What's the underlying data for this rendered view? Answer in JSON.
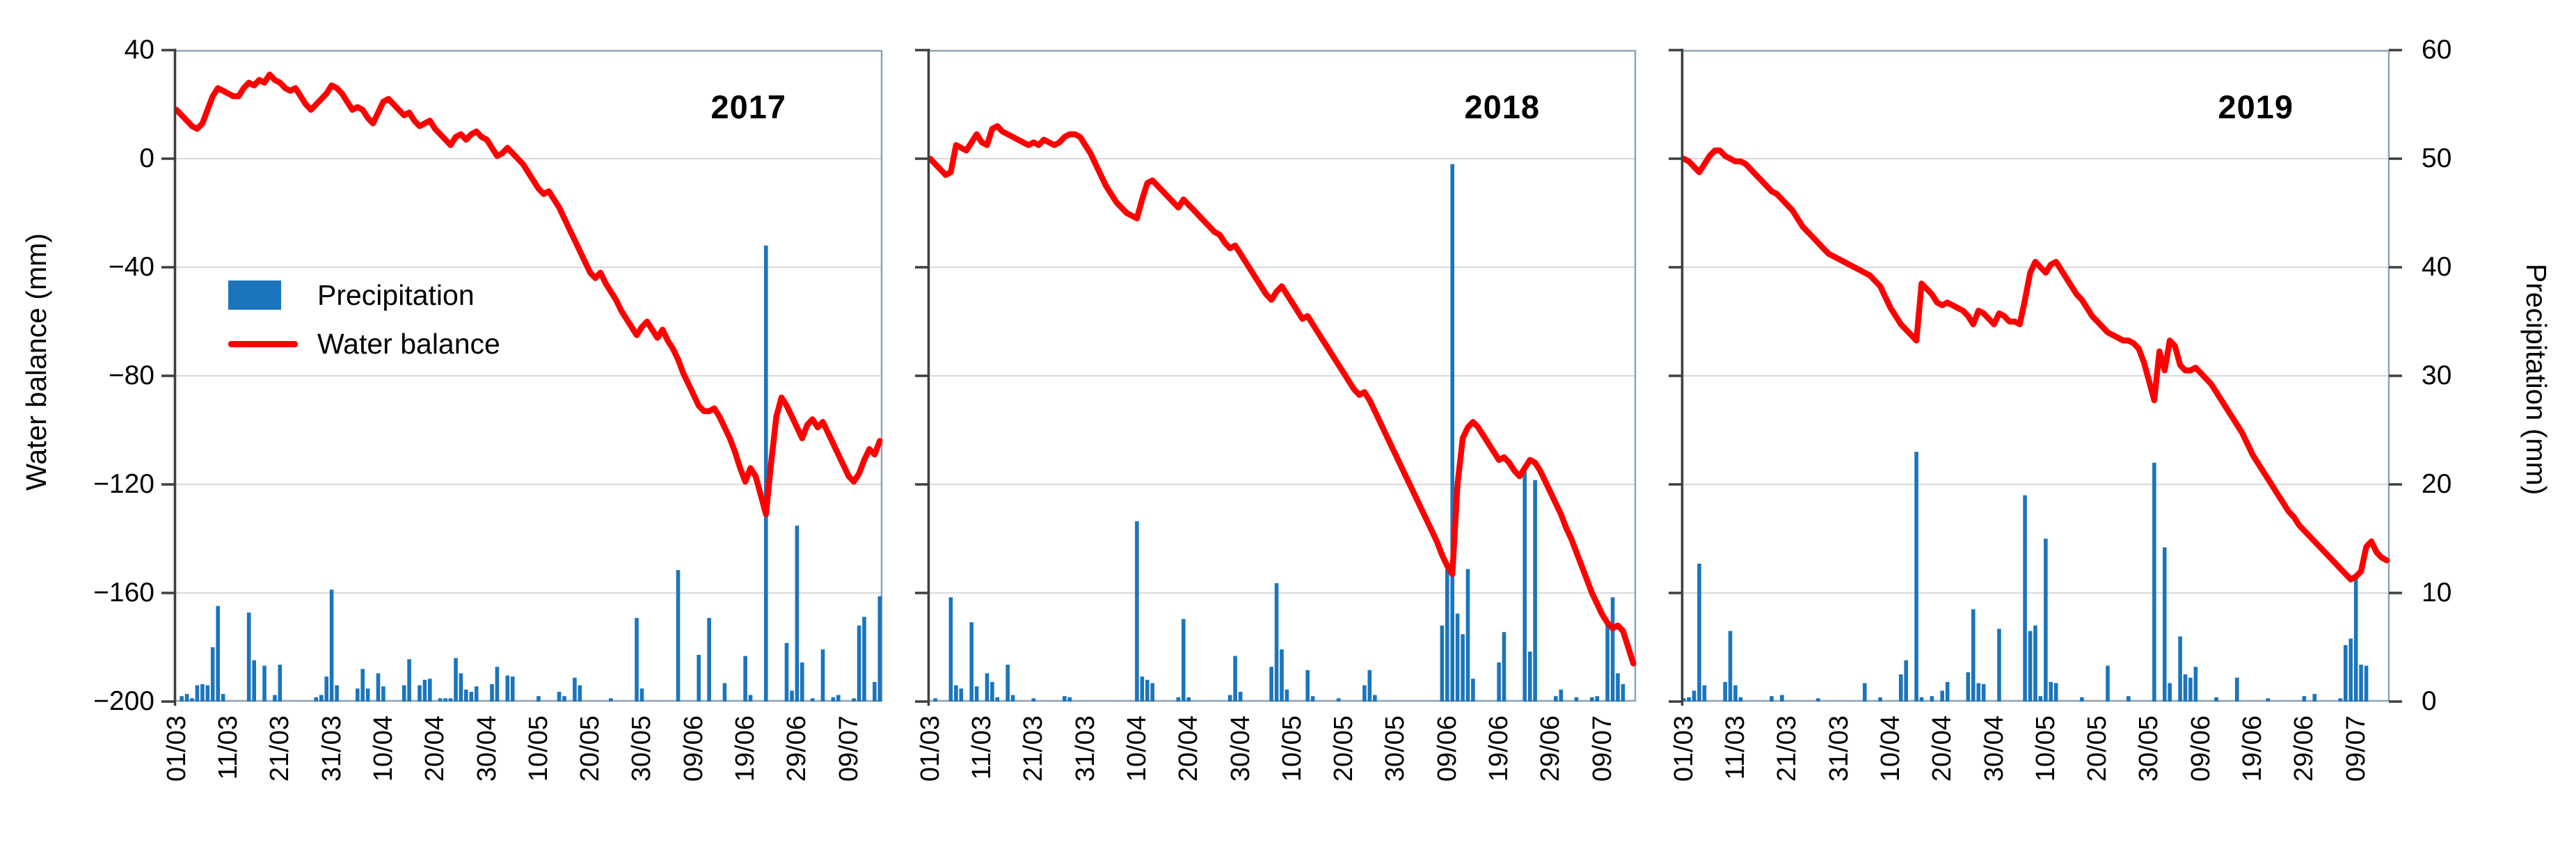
{
  "figure": {
    "description": "Daily water balance (red line, left axis) and precipitation (blue bars, right axis) from 01/03 to mid-July for 2017, 2018 and 2019"
  },
  "colors": {
    "bar": "#1B75BC",
    "line": "#FE0000",
    "grid": "#D9D9D9",
    "baseline": "#C6C6C6",
    "panel_border": "#8EA3B8",
    "spine": "#3F3F3F",
    "text": "#000000",
    "background": "#FFFFFF"
  },
  "axes": {
    "left": {
      "title": "Water balance (mm)",
      "ticks": [
        40,
        0,
        -40,
        -80,
        -120,
        -160,
        -200
      ],
      "tick_labels": [
        "40",
        "0",
        "−40",
        "−80",
        "−120",
        "−160",
        "−200"
      ],
      "range": [
        -200,
        40
      ]
    },
    "right": {
      "title": "Precipitation (mm)",
      "ticks": [
        60,
        50,
        40,
        30,
        20,
        10,
        0
      ],
      "tick_labels": [
        "60",
        "50",
        "40",
        "30",
        "20",
        "10",
        "0"
      ],
      "range": [
        0,
        60
      ]
    },
    "x": {
      "tick_labels": [
        "01/03",
        "11/03",
        "21/03",
        "31/03",
        "10/04",
        "20/04",
        "30/04",
        "10/05",
        "20/05",
        "30/05",
        "09/06",
        "19/06",
        "29/06",
        "09/07"
      ],
      "tick_days": [
        0,
        10,
        20,
        30,
        40,
        50,
        60,
        70,
        80,
        90,
        100,
        110,
        120,
        130
      ],
      "total_days": 137,
      "grid": false
    }
  },
  "legend": {
    "items": [
      {
        "label": "Precipitation",
        "type": "bar",
        "color": "#1B75BC"
      },
      {
        "label": "Water balance",
        "type": "line",
        "color": "#FE0000"
      }
    ]
  },
  "chart_data": [
    {
      "type": "bar+line",
      "title": "2017",
      "x_unit": "day index, 0 = 01/03, daily data to mid-July",
      "precipitation_mm_by_day": [
        [
          1,
          0.5
        ],
        [
          2,
          0.7
        ],
        [
          3,
          0.3
        ],
        [
          4,
          1.5
        ],
        [
          5,
          1.6
        ],
        [
          6,
          1.5
        ],
        [
          7,
          5.0
        ],
        [
          8,
          8.8
        ],
        [
          9,
          0.7
        ],
        [
          14,
          8.2
        ],
        [
          15,
          3.8
        ],
        [
          17,
          3.3
        ],
        [
          19,
          0.6
        ],
        [
          20,
          3.4
        ],
        [
          27,
          0.4
        ],
        [
          28,
          0.6
        ],
        [
          29,
          2.3
        ],
        [
          30,
          10.3
        ],
        [
          31,
          1.5
        ],
        [
          35,
          1.2
        ],
        [
          36,
          3.0
        ],
        [
          37,
          1.2
        ],
        [
          39,
          2.6
        ],
        [
          40,
          1.4
        ],
        [
          44,
          1.5
        ],
        [
          45,
          3.9
        ],
        [
          47,
          1.5
        ],
        [
          48,
          2.0
        ],
        [
          49,
          2.1
        ],
        [
          51,
          0.3
        ],
        [
          52,
          0.3
        ],
        [
          53,
          0.3
        ],
        [
          54,
          4.0
        ],
        [
          55,
          2.6
        ],
        [
          56,
          1.1
        ],
        [
          57,
          0.9
        ],
        [
          58,
          1.4
        ],
        [
          61,
          1.6
        ],
        [
          62,
          3.2
        ],
        [
          64,
          2.4
        ],
        [
          65,
          2.3
        ],
        [
          70,
          0.5
        ],
        [
          74,
          0.9
        ],
        [
          75,
          0.5
        ],
        [
          77,
          2.2
        ],
        [
          78,
          1.5
        ],
        [
          84,
          0.3
        ],
        [
          89,
          7.7
        ],
        [
          90,
          1.2
        ],
        [
          97,
          12.1
        ],
        [
          101,
          4.3
        ],
        [
          103,
          7.7
        ],
        [
          106,
          1.7
        ],
        [
          110,
          4.2
        ],
        [
          111,
          0.6
        ],
        [
          114,
          42.0
        ],
        [
          118,
          5.4
        ],
        [
          119,
          1.0
        ],
        [
          120,
          16.2
        ],
        [
          121,
          3.6
        ],
        [
          123,
          0.3
        ],
        [
          125,
          4.8
        ],
        [
          127,
          0.4
        ],
        [
          128,
          0.6
        ],
        [
          131,
          0.3
        ],
        [
          132,
          7.0
        ],
        [
          133,
          7.8
        ],
        [
          135,
          1.8
        ],
        [
          136,
          9.7
        ]
      ],
      "water_balance_mm_by_day": [
        18,
        16,
        14,
        12,
        11,
        13,
        18,
        23,
        26,
        25,
        24,
        23,
        23,
        26,
        28,
        27,
        29,
        28,
        31,
        29,
        28,
        26,
        25,
        26,
        23,
        20,
        18,
        20,
        22,
        24,
        27,
        26,
        24,
        21,
        18,
        19,
        18,
        15,
        13,
        17,
        21,
        22,
        20,
        18,
        16,
        17,
        14,
        12,
        13,
        14,
        11,
        9,
        7,
        5,
        8,
        9,
        7,
        9,
        10,
        8,
        7,
        4,
        1,
        2,
        4,
        2,
        0,
        -2,
        -5,
        -8,
        -11,
        -13,
        -12,
        -15,
        -18,
        -22,
        -26,
        -30,
        -34,
        -38,
        -42,
        -44,
        -42,
        -46,
        -49,
        -52,
        -56,
        -59,
        -62,
        -65,
        -62,
        -60,
        -63,
        -66,
        -63,
        -67,
        -70,
        -74,
        -79,
        -83,
        -87,
        -91,
        -93,
        -93,
        -92,
        -95,
        -99,
        -103,
        -108,
        -114,
        -119,
        -114,
        -117,
        -124,
        -131,
        -112,
        -95,
        -88,
        -91,
        -95,
        -99,
        -103,
        -98,
        -96,
        -99,
        -97,
        -101,
        -105,
        -109,
        -113,
        -117,
        -119,
        -116,
        -111,
        -107,
        -109,
        -104
      ]
    },
    {
      "type": "bar+line",
      "title": "2018",
      "x_unit": "day index, 0 = 01/03, daily data to mid-July",
      "precipitation_mm_by_day": [
        [
          1,
          0.3
        ],
        [
          4,
          9.6
        ],
        [
          5,
          1.5
        ],
        [
          6,
          1.2
        ],
        [
          8,
          7.3
        ],
        [
          9,
          1.4
        ],
        [
          11,
          2.6
        ],
        [
          12,
          1.8
        ],
        [
          13,
          0.4
        ],
        [
          15,
          3.4
        ],
        [
          16,
          0.6
        ],
        [
          20,
          0.3
        ],
        [
          26,
          0.5
        ],
        [
          27,
          0.4
        ],
        [
          40,
          16.6
        ],
        [
          41,
          2.3
        ],
        [
          42,
          2.0
        ],
        [
          43,
          1.7
        ],
        [
          48,
          0.4
        ],
        [
          49,
          7.6
        ],
        [
          50,
          0.4
        ],
        [
          58,
          0.6
        ],
        [
          59,
          4.2
        ],
        [
          60,
          0.9
        ],
        [
          66,
          3.2
        ],
        [
          67,
          10.9
        ],
        [
          68,
          4.8
        ],
        [
          69,
          1.1
        ],
        [
          73,
          2.9
        ],
        [
          74,
          0.5
        ],
        [
          79,
          0.3
        ],
        [
          84,
          1.5
        ],
        [
          85,
          2.9
        ],
        [
          86,
          0.6
        ],
        [
          99,
          7.0
        ],
        [
          100,
          12.2
        ],
        [
          101,
          49.5
        ],
        [
          102,
          8.1
        ],
        [
          103,
          6.2
        ],
        [
          104,
          12.2
        ],
        [
          105,
          2.1
        ],
        [
          110,
          3.6
        ],
        [
          111,
          6.4
        ],
        [
          115,
          21.2
        ],
        [
          116,
          4.6
        ],
        [
          117,
          20.4
        ],
        [
          121,
          0.5
        ],
        [
          122,
          1.1
        ],
        [
          125,
          0.4
        ],
        [
          128,
          0.4
        ],
        [
          129,
          0.5
        ],
        [
          131,
          7.2
        ],
        [
          132,
          9.6
        ],
        [
          133,
          2.6
        ],
        [
          134,
          1.6
        ]
      ],
      "water_balance_mm_by_day": [
        0,
        -2,
        -4,
        -6,
        -5,
        5,
        4,
        3,
        6,
        9,
        6,
        5,
        11,
        12,
        10,
        9,
        8,
        7,
        6,
        5,
        6,
        5,
        7,
        6,
        5,
        6,
        8,
        9,
        9,
        8,
        5,
        2,
        -2,
        -6,
        -10,
        -13,
        -16,
        -18,
        -20,
        -21,
        -22,
        -15,
        -9,
        -8,
        -10,
        -12,
        -14,
        -16,
        -18,
        -15,
        -17,
        -19,
        -21,
        -23,
        -25,
        -27,
        -28,
        -31,
        -33,
        -32,
        -35,
        -38,
        -41,
        -44,
        -47,
        -50,
        -52,
        -49,
        -47,
        -50,
        -53,
        -56,
        -59,
        -58,
        -61,
        -64,
        -67,
        -70,
        -73,
        -76,
        -79,
        -82,
        -85,
        -87,
        -86,
        -89,
        -93,
        -97,
        -101,
        -105,
        -109,
        -113,
        -117,
        -121,
        -125,
        -129,
        -133,
        -137,
        -141,
        -146,
        -150,
        -153,
        -120,
        -103,
        -99,
        -97,
        -99,
        -102,
        -105,
        -108,
        -111,
        -110,
        -112,
        -115,
        -117,
        -114,
        -111,
        -112,
        -115,
        -119,
        -123,
        -127,
        -131,
        -136,
        -140,
        -145,
        -150,
        -155,
        -160,
        -164,
        -168,
        -171,
        -173,
        -172,
        -174,
        -180,
        -186
      ]
    },
    {
      "type": "bar+line",
      "title": "2019",
      "x_unit": "day index, 0 = 01/03, daily data to mid-July",
      "precipitation_mm_by_day": [
        [
          0,
          0.3
        ],
        [
          1,
          0.4
        ],
        [
          2,
          1.0
        ],
        [
          3,
          12.7
        ],
        [
          4,
          1.5
        ],
        [
          8,
          1.8
        ],
        [
          9,
          6.5
        ],
        [
          10,
          1.5
        ],
        [
          11,
          0.4
        ],
        [
          17,
          0.5
        ],
        [
          19,
          0.6
        ],
        [
          26,
          0.3
        ],
        [
          35,
          1.7
        ],
        [
          38,
          0.4
        ],
        [
          42,
          2.5
        ],
        [
          43,
          3.8
        ],
        [
          45,
          23.0
        ],
        [
          46,
          0.4
        ],
        [
          48,
          0.5
        ],
        [
          50,
          1.0
        ],
        [
          51,
          1.8
        ],
        [
          55,
          2.7
        ],
        [
          56,
          8.5
        ],
        [
          57,
          1.7
        ],
        [
          58,
          1.6
        ],
        [
          61,
          6.7
        ],
        [
          66,
          19.0
        ],
        [
          67,
          6.5
        ],
        [
          68,
          7.0
        ],
        [
          69,
          0.5
        ],
        [
          70,
          15.0
        ],
        [
          71,
          1.8
        ],
        [
          72,
          1.7
        ],
        [
          77,
          0.4
        ],
        [
          82,
          3.3
        ],
        [
          86,
          0.5
        ],
        [
          91,
          22.0
        ],
        [
          93,
          14.2
        ],
        [
          94,
          1.7
        ],
        [
          96,
          6.0
        ],
        [
          97,
          2.5
        ],
        [
          98,
          2.2
        ],
        [
          99,
          3.2
        ],
        [
          103,
          0.4
        ],
        [
          107,
          2.2
        ],
        [
          113,
          0.3
        ],
        [
          120,
          0.5
        ],
        [
          122,
          0.7
        ],
        [
          127,
          0.3
        ],
        [
          128,
          5.2
        ],
        [
          129,
          5.8
        ],
        [
          130,
          11.8
        ],
        [
          131,
          3.4
        ],
        [
          132,
          3.3
        ]
      ],
      "water_balance_mm_by_day": [
        0,
        -1,
        -3,
        -5,
        -2,
        1,
        3,
        3,
        1,
        0,
        -1,
        -1,
        -2,
        -4,
        -6,
        -8,
        -10,
        -12,
        -13,
        -15,
        -17,
        -19,
        -22,
        -25,
        -27,
        -29,
        -31,
        -33,
        -35,
        -36,
        -37,
        -38,
        -39,
        -40,
        -41,
        -42,
        -43,
        -45,
        -47,
        -51,
        -55,
        -58,
        -61,
        -63,
        -65,
        -67,
        -46,
        -48,
        -50,
        -53,
        -54,
        -53,
        -54,
        -55,
        -56,
        -58,
        -61,
        -56,
        -57,
        -59,
        -61,
        -57,
        -58,
        -60,
        -60,
        -61,
        -52,
        -42,
        -38,
        -40,
        -42,
        -39,
        -38,
        -41,
        -44,
        -47,
        -50,
        -52,
        -55,
        -58,
        -60,
        -62,
        -64,
        -65,
        -66,
        -67,
        -67,
        -68,
        -70,
        -75,
        -82,
        -89,
        -71,
        -78,
        -67,
        -69,
        -76,
        -78,
        -78,
        -77,
        -79,
        -81,
        -83,
        -86,
        -89,
        -92,
        -95,
        -98,
        -101,
        -105,
        -109,
        -112,
        -115,
        -118,
        -121,
        -124,
        -127,
        -130,
        -132,
        -135,
        -137,
        -139,
        -141,
        -143,
        -145,
        -147,
        -149,
        -151,
        -153,
        -155,
        -154,
        -152,
        -143,
        -141,
        -145,
        -147,
        -148
      ]
    }
  ]
}
